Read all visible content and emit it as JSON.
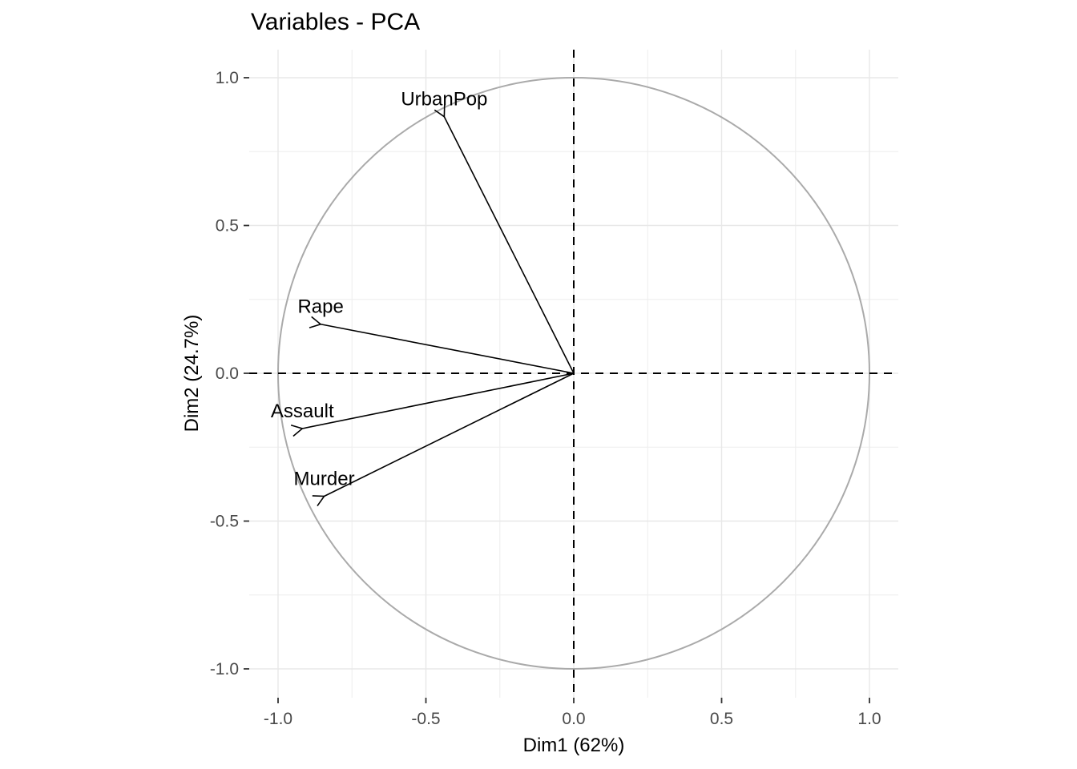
{
  "title": "Variables - PCA",
  "chart_data": {
    "type": "scatter",
    "subtype": "pca-variable-correlation-circle",
    "title": "Variables - PCA",
    "xlabel": "Dim1 (62%)",
    "ylabel": "Dim2 (24.7%)",
    "xlim": [
      -1.095,
      1.095
    ],
    "ylim": [
      -1.095,
      1.095
    ],
    "grid": true,
    "legend": "none",
    "unit_circle": true,
    "reference_lines": {
      "h": 0,
      "v": 0,
      "style": "dashed"
    },
    "x_ticks": {
      "values": [
        -1.0,
        -0.5,
        0.0,
        0.5,
        1.0
      ],
      "labels": [
        "-1.0",
        "-0.5",
        "0.0",
        "0.5",
        "1.0"
      ]
    },
    "y_ticks": {
      "values": [
        -1.0,
        -0.5,
        0.0,
        0.5,
        1.0
      ],
      "labels": [
        "-1.0",
        "-0.5",
        "0.0",
        "0.5",
        "1.0"
      ]
    },
    "minor_gridlines": [
      -0.75,
      -0.25,
      0.25,
      0.75
    ],
    "variables": [
      {
        "name": "Murder",
        "x": -0.844,
        "y": -0.416
      },
      {
        "name": "Assault",
        "x": -0.918,
        "y": -0.187
      },
      {
        "name": "UrbanPop",
        "x": -0.438,
        "y": 0.868
      },
      {
        "name": "Rape",
        "x": -0.856,
        "y": 0.166
      }
    ]
  },
  "colors": {
    "background": "#ffffff",
    "title": "#000000",
    "axis_title": "#000000",
    "grid_major": "#e8e8e8",
    "grid_minor": "#f0f0f0",
    "circle": "#aaaaaa",
    "reference_line": "#000000",
    "arrow": "#000000",
    "variable_label": "#000000",
    "tick": "#333333",
    "tick_label": "#4a4a4a"
  }
}
